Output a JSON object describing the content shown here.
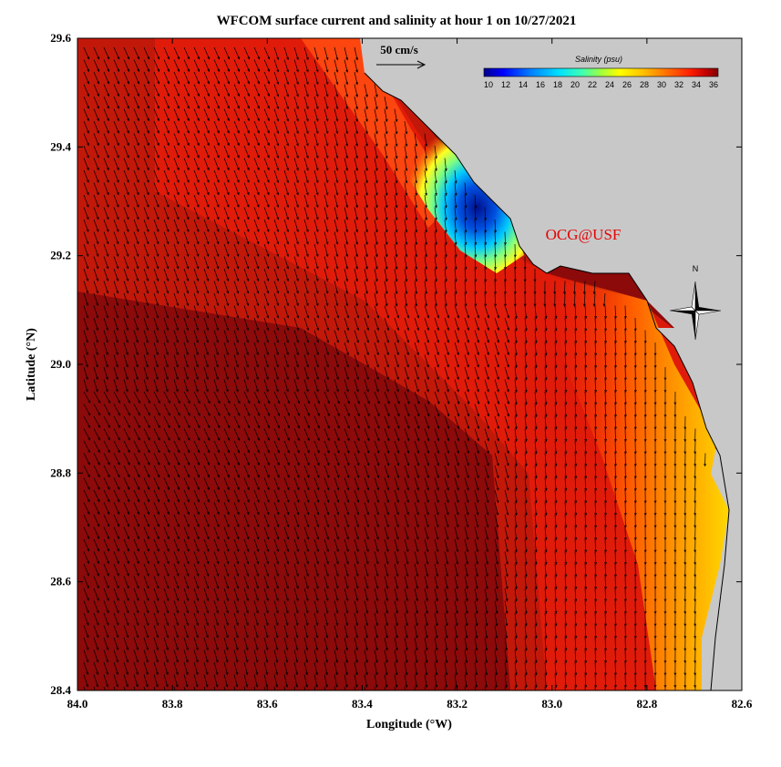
{
  "title": "WFCOM surface current and salinity at hour 1 on 10/27/2021",
  "credit": "OCG@USF",
  "scale_label": "50 cm/s",
  "compass_label": "N",
  "colors": {
    "land": "#c8c8c8",
    "deep": "#8c0a0a",
    "shelf": "#c81a0a",
    "coast_red": "#f01e0a",
    "credit": "#e60000",
    "arrow": "#000000"
  },
  "chart_data": {
    "type": "heatmap",
    "title": "WFCOM surface current and salinity at hour 1 on 10/27/2021",
    "xlabel": "Longitude (°W)",
    "ylabel": "Latitude (°N)",
    "xlim": [
      84.0,
      82.6
    ],
    "ylim": [
      28.4,
      29.6
    ],
    "x_ticks": [
      "84.0",
      "83.8",
      "83.6",
      "83.4",
      "83.2",
      "83.0",
      "82.8",
      "82.6"
    ],
    "y_ticks": [
      "28.4",
      "28.6",
      "28.8",
      "29.0",
      "29.2",
      "29.4",
      "29.6"
    ],
    "colorbar": {
      "title": "Salinity (psu)",
      "min": 10,
      "max": 36,
      "ticks": [
        "10",
        "12",
        "14",
        "16",
        "18",
        "20",
        "22",
        "24",
        "26",
        "28",
        "30",
        "32",
        "34",
        "36"
      ],
      "colors": [
        "#00008b",
        "#0000ff",
        "#0060ff",
        "#00b0ff",
        "#00ffff",
        "#40ffb0",
        "#a0ff40",
        "#ffff00",
        "#ffc000",
        "#ff8000",
        "#ff4000",
        "#e00000",
        "#a00000",
        "#800000"
      ]
    },
    "vector_reference": {
      "speed_cm_s": 50
    },
    "salinity_features": [
      {
        "name": "low-salinity plume near 29.3°N 83.2°W",
        "min_psu": 10
      },
      {
        "name": "fresher coastal band east of 82.8°W",
        "approx_psu": 26
      }
    ],
    "current_pattern": "predominantly southward to south-southeastward surface currents across the domain, turning more southward near the coast"
  }
}
